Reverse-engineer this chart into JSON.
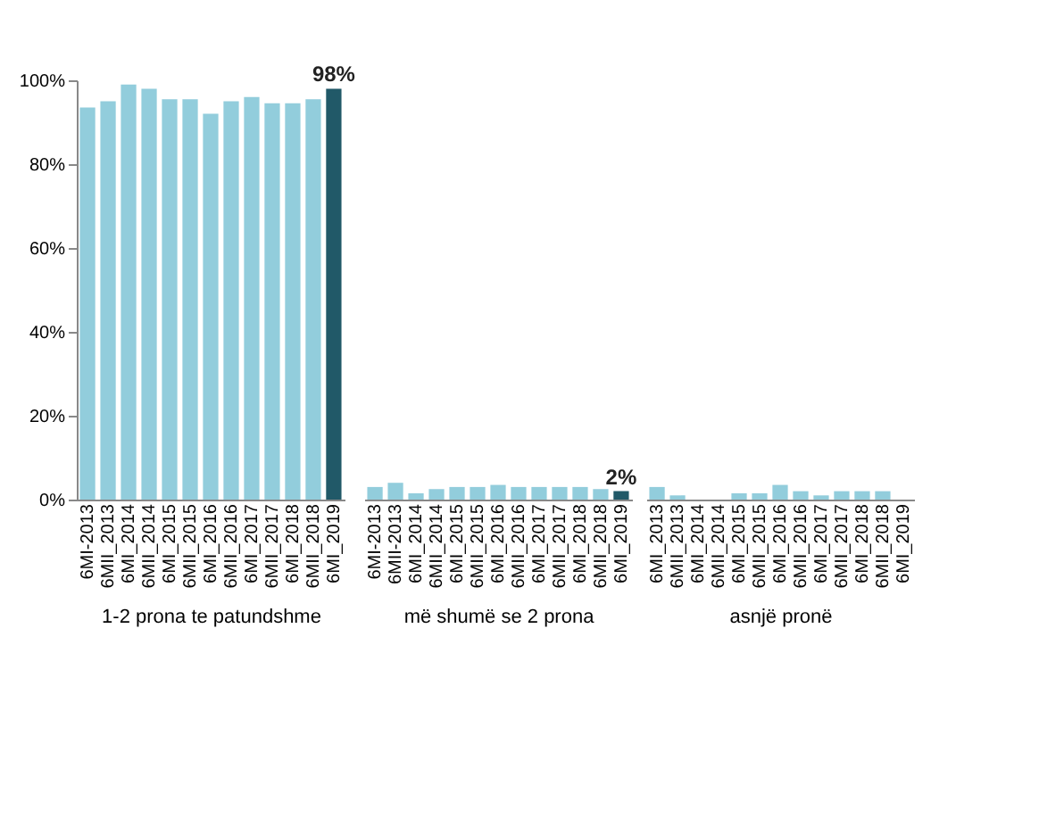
{
  "chart_data": [
    {
      "type": "bar",
      "xlabel": "1-2 prona te patundshme",
      "categories": [
        "6MI-2013",
        "6MII_2013",
        "6MI_2014",
        "6MII_2014",
        "6MI_2015",
        "6MII_2015",
        "6MI_2016",
        "6MII_2016",
        "6MI_2017",
        "6MII_2017",
        "6MI_2018",
        "6MII_2018",
        "6MI_2019"
      ],
      "values": [
        93.5,
        95,
        99,
        98,
        95.5,
        95.5,
        92,
        95,
        96,
        94.5,
        94.5,
        95.5,
        98
      ],
      "colors": [
        "#92cddc",
        "#92cddc",
        "#92cddc",
        "#92cddc",
        "#92cddc",
        "#92cddc",
        "#92cddc",
        "#92cddc",
        "#92cddc",
        "#92cddc",
        "#92cddc",
        "#92cddc",
        "#215968"
      ],
      "value_labels": [
        null,
        null,
        null,
        null,
        null,
        null,
        null,
        null,
        null,
        null,
        null,
        null,
        "98%"
      ],
      "ylim": [
        0,
        100
      ],
      "yticks": [
        {
          "value": 0,
          "label": "0%"
        },
        {
          "value": 20,
          "label": "20%"
        },
        {
          "value": 40,
          "label": "40%"
        },
        {
          "value": 60,
          "label": "60%"
        },
        {
          "value": 80,
          "label": "80%"
        },
        {
          "value": 100,
          "label": "100%"
        }
      ],
      "grid": false
    },
    {
      "type": "bar",
      "xlabel": "më shumë se 2 prona",
      "categories": [
        "6MI-2013",
        "6MII-2013",
        "6MI_2014",
        "6MII_2014",
        "6MI_2015",
        "6MII_2015",
        "6MI_2016",
        "6MII_2016",
        "6MI_2017",
        "6MII_2017",
        "6MI_2018",
        "6MII_2018",
        "6MI_2019"
      ],
      "values": [
        3,
        4,
        1.5,
        2.5,
        3,
        3,
        3.5,
        3,
        3,
        3,
        3,
        2.5,
        2
      ],
      "colors": [
        "#92cddc",
        "#92cddc",
        "#92cddc",
        "#92cddc",
        "#92cddc",
        "#92cddc",
        "#92cddc",
        "#92cddc",
        "#92cddc",
        "#92cddc",
        "#92cddc",
        "#92cddc",
        "#215968"
      ],
      "value_labels": [
        null,
        null,
        null,
        null,
        null,
        null,
        null,
        null,
        null,
        null,
        null,
        null,
        "2%"
      ],
      "ylim": [
        0,
        100
      ],
      "tick_labels": "x",
      "grid": false
    },
    {
      "type": "bar",
      "xlabel": "asnjë pronë",
      "categories": [
        "6MI_2013",
        "6MII_2013",
        "6MI_2014",
        "6MII_2014",
        "6MI_2015",
        "6MII_2015",
        "6MI_2016",
        "6MII_2016",
        "6MI_2017",
        "6MII_2017",
        "6MI_2018",
        "6MII_2018",
        "6MI_2019"
      ],
      "values": [
        3,
        1,
        0,
        0,
        1.5,
        1.5,
        3.5,
        2,
        1,
        2,
        2,
        2,
        0
      ],
      "colors": [
        "#92cddc",
        "#92cddc",
        "#92cddc",
        "#92cddc",
        "#92cddc",
        "#92cddc",
        "#92cddc",
        "#92cddc",
        "#92cddc",
        "#92cddc",
        "#92cddc",
        "#92cddc",
        "#215968"
      ],
      "ylim": [
        0,
        100
      ],
      "tick_labels": "x",
      "grid": false
    }
  ]
}
